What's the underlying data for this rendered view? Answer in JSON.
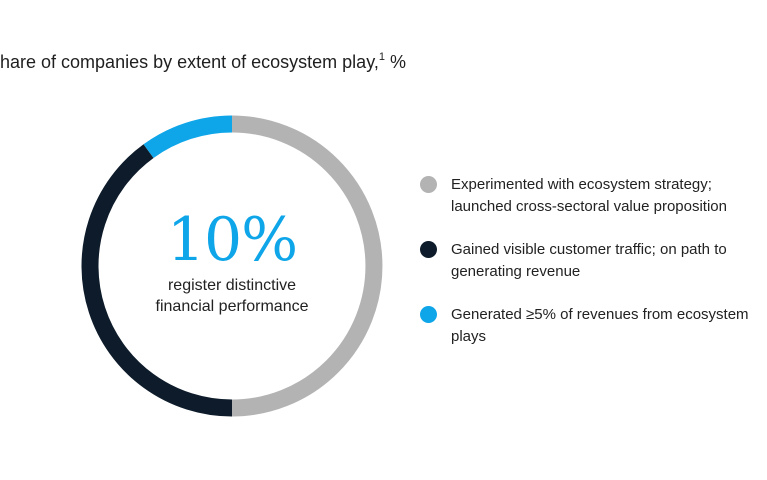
{
  "chart_data": {
    "type": "pie",
    "variant": "donut",
    "title": "hare of companies by extent of ecosystem play,",
    "title_footnote": "1",
    "title_unit": "%",
    "categories": [
      "Experimented with ecosystem strategy; launched cross-sectoral value proposition",
      "Gained visible customer traffic; on path to generating revenue",
      "Generated ≥5% of revenues from ecosystem plays"
    ],
    "values": [
      50,
      40,
      10
    ],
    "colors": [
      "#b3b3b3",
      "#0d1b2a",
      "#0ea5e9"
    ],
    "center_value": "10%",
    "center_caption_lines": [
      "register distinctive",
      "financial performance"
    ],
    "legend_placement": "right"
  }
}
